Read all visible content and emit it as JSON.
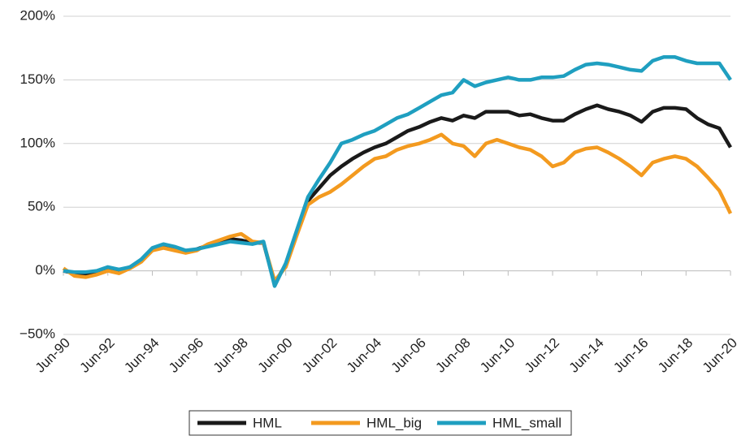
{
  "chart_data": {
    "type": "line",
    "categories": [
      "Jun-90",
      null,
      null,
      null,
      "Jun-92",
      null,
      null,
      null,
      "Jun-94",
      null,
      null,
      null,
      "Jun-96",
      null,
      null,
      null,
      "Jun-98",
      null,
      null,
      null,
      "Jun-00",
      null,
      null,
      null,
      "Jun-02",
      null,
      null,
      null,
      "Jun-04",
      null,
      null,
      null,
      "Jun-06",
      null,
      null,
      null,
      "Jun-08",
      null,
      null,
      null,
      "Jun-10",
      null,
      null,
      null,
      "Jun-12",
      null,
      null,
      null,
      "Jun-14",
      null,
      null,
      null,
      "Jun-16",
      null,
      null,
      null,
      "Jun-18",
      null,
      null,
      null,
      "Jun-20"
    ],
    "series": [
      {
        "name": "HML",
        "color": "#1a1a1a",
        "values": [
          0,
          -2,
          -3,
          -2,
          2,
          0,
          3,
          8,
          17,
          20,
          18,
          15,
          17,
          20,
          22,
          25,
          24,
          22,
          22,
          -10,
          5,
          30,
          55,
          65,
          75,
          82,
          88,
          93,
          97,
          100,
          105,
          110,
          113,
          117,
          120,
          118,
          122,
          120,
          125,
          125,
          125,
          122,
          123,
          120,
          118,
          118,
          123,
          127,
          130,
          127,
          125,
          122,
          117,
          125,
          128,
          128,
          127,
          120,
          115,
          112,
          97
        ]
      },
      {
        "name": "HML_big",
        "color": "#f39a1f",
        "values": [
          2,
          -4,
          -5,
          -3,
          0,
          -2,
          2,
          7,
          16,
          18,
          16,
          14,
          16,
          21,
          24,
          27,
          29,
          23,
          22,
          -8,
          3,
          28,
          52,
          58,
          62,
          68,
          75,
          82,
          88,
          90,
          95,
          98,
          100,
          103,
          107,
          100,
          98,
          90,
          100,
          103,
          100,
          97,
          95,
          90,
          82,
          85,
          93,
          96,
          97,
          93,
          88,
          82,
          75,
          85,
          88,
          90,
          88,
          82,
          73,
          63,
          45
        ]
      },
      {
        "name": "HML_small",
        "color": "#1f9fc0",
        "values": [
          0,
          -1,
          -1,
          0,
          3,
          1,
          3,
          9,
          18,
          21,
          19,
          16,
          17,
          19,
          21,
          23,
          22,
          21,
          23,
          -12,
          6,
          32,
          58,
          72,
          85,
          100,
          103,
          107,
          110,
          115,
          120,
          123,
          128,
          133,
          138,
          140,
          150,
          145,
          148,
          150,
          152,
          150,
          150,
          152,
          152,
          153,
          158,
          162,
          163,
          162,
          160,
          158,
          157,
          165,
          168,
          168,
          165,
          163,
          163,
          163,
          150
        ]
      }
    ],
    "ylim": [
      {
        "value": -50,
        "label": "−50%"
      },
      {
        "value": 200,
        "label": "200%"
      }
    ],
    "yticks": [
      {
        "value": -50,
        "label": "−50%"
      },
      {
        "value": 0,
        "label": "0%"
      },
      {
        "value": 50,
        "label": "50%"
      },
      {
        "value": 100,
        "label": "100%"
      },
      {
        "value": 150,
        "label": "150%"
      },
      {
        "value": 200,
        "label": "200%"
      }
    ],
    "grid": true,
    "legend": "bottom"
  }
}
